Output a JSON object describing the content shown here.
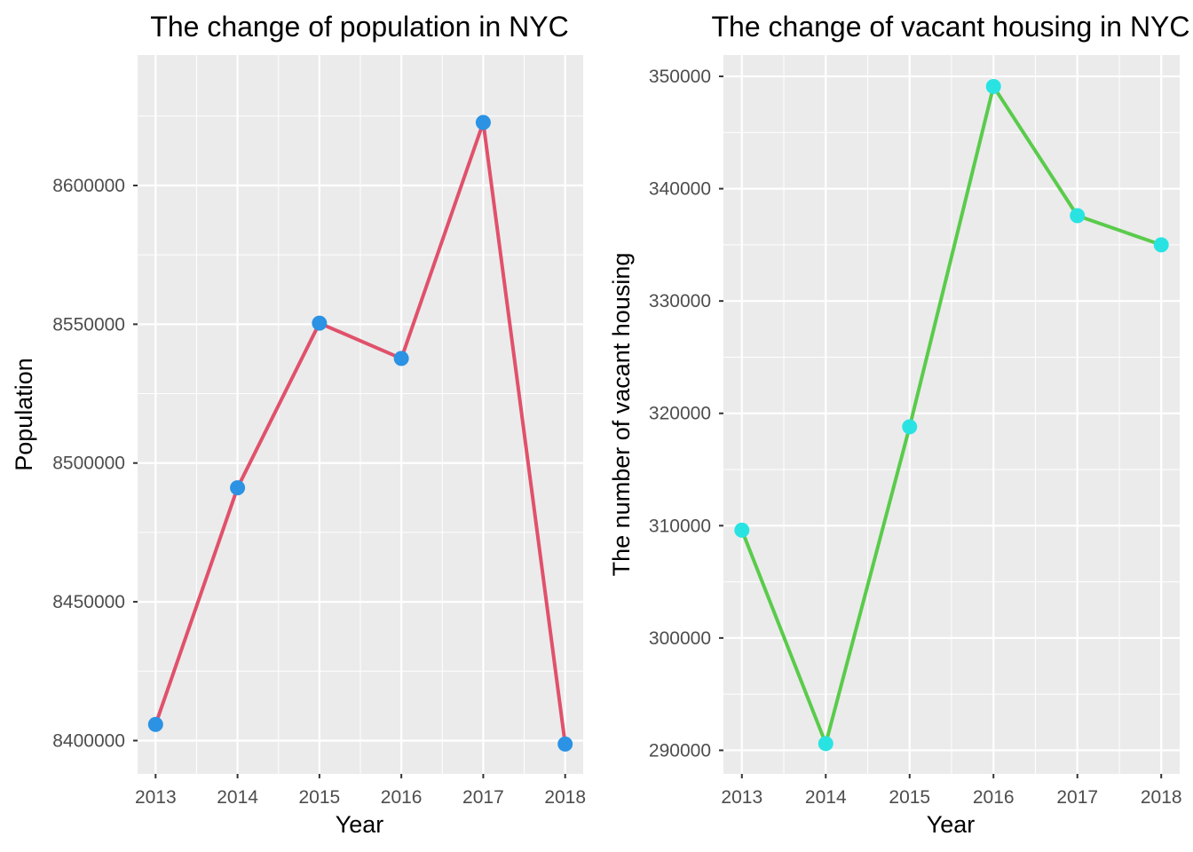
{
  "chart_data": [
    {
      "type": "line",
      "title": "The change of population in NYC",
      "xlabel": "Year",
      "ylabel": "Population",
      "x": [
        2013,
        2014,
        2015,
        2016,
        2017,
        2018
      ],
      "series": [
        {
          "values": [
            8405837,
            8491079,
            8550405,
            8537673,
            8622698,
            8398748
          ]
        }
      ],
      "x_ticks": [
        "2013",
        "2014",
        "2015",
        "2016",
        "2017",
        "2018"
      ],
      "y_ticks": [
        "8400000",
        "8450000",
        "8500000",
        "8550000",
        "8600000"
      ],
      "xlim": [
        2012.78,
        2018.22
      ],
      "ylim": [
        8388000,
        8647000
      ],
      "grid": true,
      "line_color": "#e0516b",
      "point_color": "#2b92e4",
      "panel_background": "#ebebeb"
    },
    {
      "type": "line",
      "title": "The change of vacant housing in NYC",
      "xlabel": "Year",
      "ylabel": "The number of vacant housing",
      "x": [
        2013,
        2014,
        2015,
        2016,
        2017,
        2018
      ],
      "series": [
        {
          "values": [
            309600,
            290600,
            318800,
            349100,
            337600,
            335000
          ]
        }
      ],
      "x_ticks": [
        "2013",
        "2014",
        "2015",
        "2016",
        "2017",
        "2018"
      ],
      "y_ticks": [
        "290000",
        "300000",
        "310000",
        "320000",
        "330000",
        "340000",
        "350000"
      ],
      "xlim": [
        2012.78,
        2018.22
      ],
      "ylim": [
        287900,
        351900
      ],
      "grid": true,
      "line_color": "#5acb4b",
      "point_color": "#29e3e3",
      "panel_background": "#ebebeb"
    }
  ]
}
